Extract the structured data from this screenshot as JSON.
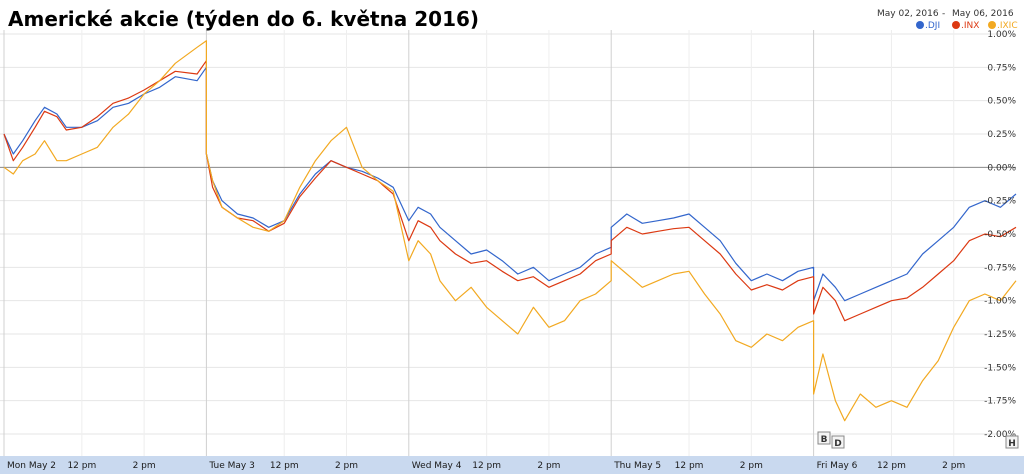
{
  "chart_data": {
    "type": "line",
    "title": "Americké akcie (týden do 6. května 2016)",
    "date_range": {
      "start": "May 02, 2016",
      "separator": "-",
      "end": "May 06, 2016"
    },
    "ylim": [
      -2.0,
      1.0
    ],
    "y_ticks": [
      "1.00%",
      "0.75%",
      "0.50%",
      "0.25%",
      "0.00%",
      "-0.25%",
      "-0.50%",
      "-0.75%",
      "-1.00%",
      "-1.25%",
      "-1.50%",
      "-1.75%",
      "-2.00%"
    ],
    "y_tick_values": [
      1.0,
      0.75,
      0.5,
      0.25,
      0.0,
      -0.25,
      -0.5,
      -0.75,
      -1.0,
      -1.25,
      -1.5,
      -1.75,
      -2.0
    ],
    "x_ticks": [
      "Mon May 2",
      "12 pm",
      "2 pm",
      "Tue May 3",
      "12 pm",
      "2 pm",
      "Wed May 4",
      "12 pm",
      "2 pm",
      "Thu May 5",
      "12 pm",
      "2 pm",
      "Fri May 6",
      "12 pm",
      "2 pm"
    ],
    "x_tick_hours": [
      0,
      2.5,
      4.5,
      6.5,
      9,
      11,
      13,
      15.5,
      17.5,
      19.5,
      22,
      24,
      26,
      28.5,
      30.5
    ],
    "x_range_hours": [
      0,
      32.5
    ],
    "grid": true,
    "legend_position": "top-right",
    "legend": [
      ".DJI",
      ".INX",
      ".IXIC"
    ],
    "markers": [
      "B",
      "D",
      "H"
    ],
    "series": [
      {
        "name": ".DJI",
        "color": "#3366cc",
        "points": [
          [
            0,
            0.25
          ],
          [
            0.3,
            0.1
          ],
          [
            0.6,
            0.2
          ],
          [
            1,
            0.35
          ],
          [
            1.3,
            0.45
          ],
          [
            1.7,
            0.4
          ],
          [
            2,
            0.3
          ],
          [
            2.5,
            0.3
          ],
          [
            3,
            0.35
          ],
          [
            3.5,
            0.45
          ],
          [
            4,
            0.48
          ],
          [
            4.5,
            0.55
          ],
          [
            5,
            0.6
          ],
          [
            5.5,
            0.68
          ],
          [
            6.2,
            0.65
          ],
          [
            6.5,
            0.75
          ],
          [
            6.5,
            0.1
          ],
          [
            6.7,
            -0.1
          ],
          [
            7,
            -0.25
          ],
          [
            7.5,
            -0.35
          ],
          [
            8,
            -0.38
          ],
          [
            8.5,
            -0.45
          ],
          [
            9,
            -0.4
          ],
          [
            9.5,
            -0.2
          ],
          [
            10,
            -0.05
          ],
          [
            10.5,
            0.05
          ],
          [
            11,
            0.0
          ],
          [
            11.5,
            -0.03
          ],
          [
            12,
            -0.08
          ],
          [
            12.5,
            -0.15
          ],
          [
            13,
            -0.4
          ],
          [
            13.3,
            -0.3
          ],
          [
            13.7,
            -0.35
          ],
          [
            14,
            -0.45
          ],
          [
            14.5,
            -0.55
          ],
          [
            15,
            -0.65
          ],
          [
            15.5,
            -0.62
          ],
          [
            16,
            -0.7
          ],
          [
            16.5,
            -0.8
          ],
          [
            17,
            -0.75
          ],
          [
            17.5,
            -0.85
          ],
          [
            18,
            -0.8
          ],
          [
            18.5,
            -0.75
          ],
          [
            19,
            -0.65
          ],
          [
            19.5,
            -0.6
          ],
          [
            19.5,
            -0.45
          ],
          [
            20,
            -0.35
          ],
          [
            20.5,
            -0.42
          ],
          [
            21,
            -0.4
          ],
          [
            21.5,
            -0.38
          ],
          [
            22,
            -0.35
          ],
          [
            22.5,
            -0.45
          ],
          [
            23,
            -0.55
          ],
          [
            23.5,
            -0.72
          ],
          [
            24,
            -0.85
          ],
          [
            24.5,
            -0.8
          ],
          [
            25,
            -0.85
          ],
          [
            25.5,
            -0.78
          ],
          [
            26,
            -0.75
          ],
          [
            26,
            -1.0
          ],
          [
            26.3,
            -0.8
          ],
          [
            26.7,
            -0.9
          ],
          [
            27,
            -1.0
          ],
          [
            27.5,
            -0.95
          ],
          [
            28,
            -0.9
          ],
          [
            28.5,
            -0.85
          ],
          [
            29,
            -0.8
          ],
          [
            29.5,
            -0.65
          ],
          [
            30,
            -0.55
          ],
          [
            30.5,
            -0.45
          ],
          [
            31,
            -0.3
          ],
          [
            31.5,
            -0.25
          ],
          [
            32,
            -0.3
          ],
          [
            32.5,
            -0.2
          ]
        ]
      },
      {
        "name": ".INX",
        "color": "#dc3912",
        "points": [
          [
            0,
            0.25
          ],
          [
            0.3,
            0.05
          ],
          [
            0.6,
            0.15
          ],
          [
            1,
            0.3
          ],
          [
            1.3,
            0.42
          ],
          [
            1.7,
            0.38
          ],
          [
            2,
            0.28
          ],
          [
            2.5,
            0.3
          ],
          [
            3,
            0.38
          ],
          [
            3.5,
            0.48
          ],
          [
            4,
            0.52
          ],
          [
            4.5,
            0.58
          ],
          [
            5,
            0.65
          ],
          [
            5.5,
            0.72
          ],
          [
            6.2,
            0.7
          ],
          [
            6.5,
            0.8
          ],
          [
            6.5,
            0.1
          ],
          [
            6.7,
            -0.15
          ],
          [
            7,
            -0.3
          ],
          [
            7.5,
            -0.38
          ],
          [
            8,
            -0.4
          ],
          [
            8.5,
            -0.48
          ],
          [
            9,
            -0.42
          ],
          [
            9.5,
            -0.22
          ],
          [
            10,
            -0.08
          ],
          [
            10.5,
            0.05
          ],
          [
            11,
            0.0
          ],
          [
            11.5,
            -0.05
          ],
          [
            12,
            -0.1
          ],
          [
            12.5,
            -0.2
          ],
          [
            13,
            -0.55
          ],
          [
            13.3,
            -0.4
          ],
          [
            13.7,
            -0.45
          ],
          [
            14,
            -0.55
          ],
          [
            14.5,
            -0.65
          ],
          [
            15,
            -0.72
          ],
          [
            15.5,
            -0.7
          ],
          [
            16,
            -0.78
          ],
          [
            16.5,
            -0.85
          ],
          [
            17,
            -0.82
          ],
          [
            17.5,
            -0.9
          ],
          [
            18,
            -0.85
          ],
          [
            18.5,
            -0.8
          ],
          [
            19,
            -0.7
          ],
          [
            19.5,
            -0.65
          ],
          [
            19.5,
            -0.55
          ],
          [
            20,
            -0.45
          ],
          [
            20.5,
            -0.5
          ],
          [
            21,
            -0.48
          ],
          [
            21.5,
            -0.46
          ],
          [
            22,
            -0.45
          ],
          [
            22.5,
            -0.55
          ],
          [
            23,
            -0.65
          ],
          [
            23.5,
            -0.8
          ],
          [
            24,
            -0.92
          ],
          [
            24.5,
            -0.88
          ],
          [
            25,
            -0.92
          ],
          [
            25.5,
            -0.85
          ],
          [
            26,
            -0.82
          ],
          [
            26,
            -1.1
          ],
          [
            26.3,
            -0.9
          ],
          [
            26.7,
            -1.0
          ],
          [
            27,
            -1.15
          ],
          [
            27.5,
            -1.1
          ],
          [
            28,
            -1.05
          ],
          [
            28.5,
            -1.0
          ],
          [
            29,
            -0.98
          ],
          [
            29.5,
            -0.9
          ],
          [
            30,
            -0.8
          ],
          [
            30.5,
            -0.7
          ],
          [
            31,
            -0.55
          ],
          [
            31.5,
            -0.5
          ],
          [
            32,
            -0.52
          ],
          [
            32.5,
            -0.45
          ]
        ]
      },
      {
        "name": ".IXIC",
        "color": "#f2a921",
        "points": [
          [
            0,
            0.0
          ],
          [
            0.3,
            -0.05
          ],
          [
            0.6,
            0.05
          ],
          [
            1,
            0.1
          ],
          [
            1.3,
            0.2
          ],
          [
            1.7,
            0.05
          ],
          [
            2,
            0.05
          ],
          [
            2.5,
            0.1
          ],
          [
            3,
            0.15
          ],
          [
            3.5,
            0.3
          ],
          [
            4,
            0.4
          ],
          [
            4.5,
            0.55
          ],
          [
            5,
            0.65
          ],
          [
            5.5,
            0.78
          ],
          [
            6.2,
            0.9
          ],
          [
            6.5,
            0.95
          ],
          [
            6.5,
            0.1
          ],
          [
            6.7,
            -0.1
          ],
          [
            7,
            -0.3
          ],
          [
            7.5,
            -0.38
          ],
          [
            8,
            -0.45
          ],
          [
            8.5,
            -0.48
          ],
          [
            9,
            -0.4
          ],
          [
            9.5,
            -0.15
          ],
          [
            10,
            0.05
          ],
          [
            10.5,
            0.2
          ],
          [
            11,
            0.3
          ],
          [
            11.5,
            0.0
          ],
          [
            12,
            -0.1
          ],
          [
            12.5,
            -0.18
          ],
          [
            13,
            -0.7
          ],
          [
            13.3,
            -0.55
          ],
          [
            13.7,
            -0.65
          ],
          [
            14,
            -0.85
          ],
          [
            14.5,
            -1.0
          ],
          [
            15,
            -0.9
          ],
          [
            15.5,
            -1.05
          ],
          [
            16,
            -1.15
          ],
          [
            16.5,
            -1.25
          ],
          [
            17,
            -1.05
          ],
          [
            17.5,
            -1.2
          ],
          [
            18,
            -1.15
          ],
          [
            18.5,
            -1.0
          ],
          [
            19,
            -0.95
          ],
          [
            19.5,
            -0.85
          ],
          [
            19.5,
            -0.7
          ],
          [
            20,
            -0.8
          ],
          [
            20.5,
            -0.9
          ],
          [
            21,
            -0.85
          ],
          [
            21.5,
            -0.8
          ],
          [
            22,
            -0.78
          ],
          [
            22.5,
            -0.95
          ],
          [
            23,
            -1.1
          ],
          [
            23.5,
            -1.3
          ],
          [
            24,
            -1.35
          ],
          [
            24.5,
            -1.25
          ],
          [
            25,
            -1.3
          ],
          [
            25.5,
            -1.2
          ],
          [
            26,
            -1.15
          ],
          [
            26,
            -1.7
          ],
          [
            26.3,
            -1.4
          ],
          [
            26.7,
            -1.75
          ],
          [
            27,
            -1.9
          ],
          [
            27.5,
            -1.7
          ],
          [
            28,
            -1.8
          ],
          [
            28.5,
            -1.75
          ],
          [
            29,
            -1.8
          ],
          [
            29.5,
            -1.6
          ],
          [
            30,
            -1.45
          ],
          [
            30.5,
            -1.2
          ],
          [
            31,
            -1.0
          ],
          [
            31.5,
            -0.95
          ],
          [
            32,
            -1.0
          ],
          [
            32.5,
            -0.85
          ]
        ]
      }
    ]
  }
}
